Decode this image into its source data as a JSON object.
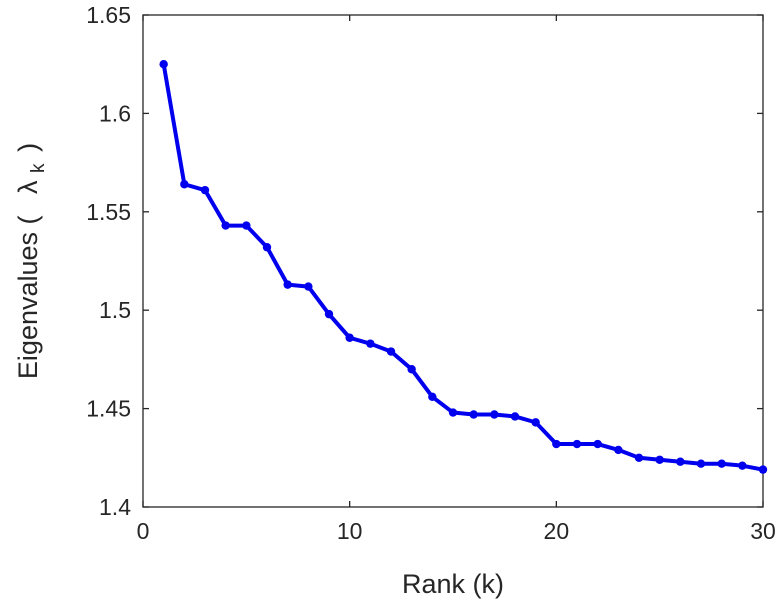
{
  "chart_data": {
    "type": "line",
    "title": "",
    "xlabel": "Rank (k)",
    "ylabel": {
      "prefix": "Eigenvalues (",
      "symbol": "λ",
      "subscript": "k",
      "suffix": ")"
    },
    "xlim": [
      0,
      30
    ],
    "ylim": [
      1.4,
      1.65
    ],
    "xticks": [
      0,
      10,
      20,
      30
    ],
    "yticks": [
      1.4,
      1.45,
      1.5,
      1.55,
      1.6,
      1.65
    ],
    "ytick_labels": [
      "1.4",
      "1.45",
      "1.5",
      "1.55",
      "1.6",
      "1.65"
    ],
    "grid": false,
    "series": [
      {
        "color": "#0000ee",
        "x": [
          1,
          2,
          3,
          4,
          5,
          6,
          7,
          8,
          9,
          10,
          11,
          12,
          13,
          14,
          15,
          16,
          17,
          18,
          19,
          20,
          21,
          22,
          23,
          24,
          25,
          26,
          27,
          28,
          29,
          30
        ],
        "values": [
          1.625,
          1.564,
          1.561,
          1.543,
          1.543,
          1.532,
          1.513,
          1.512,
          1.498,
          1.486,
          1.483,
          1.479,
          1.47,
          1.456,
          1.448,
          1.447,
          1.447,
          1.446,
          1.443,
          1.432,
          1.432,
          1.432,
          1.429,
          1.425,
          1.424,
          1.423,
          1.422,
          1.422,
          1.421,
          1.419
        ]
      }
    ]
  }
}
